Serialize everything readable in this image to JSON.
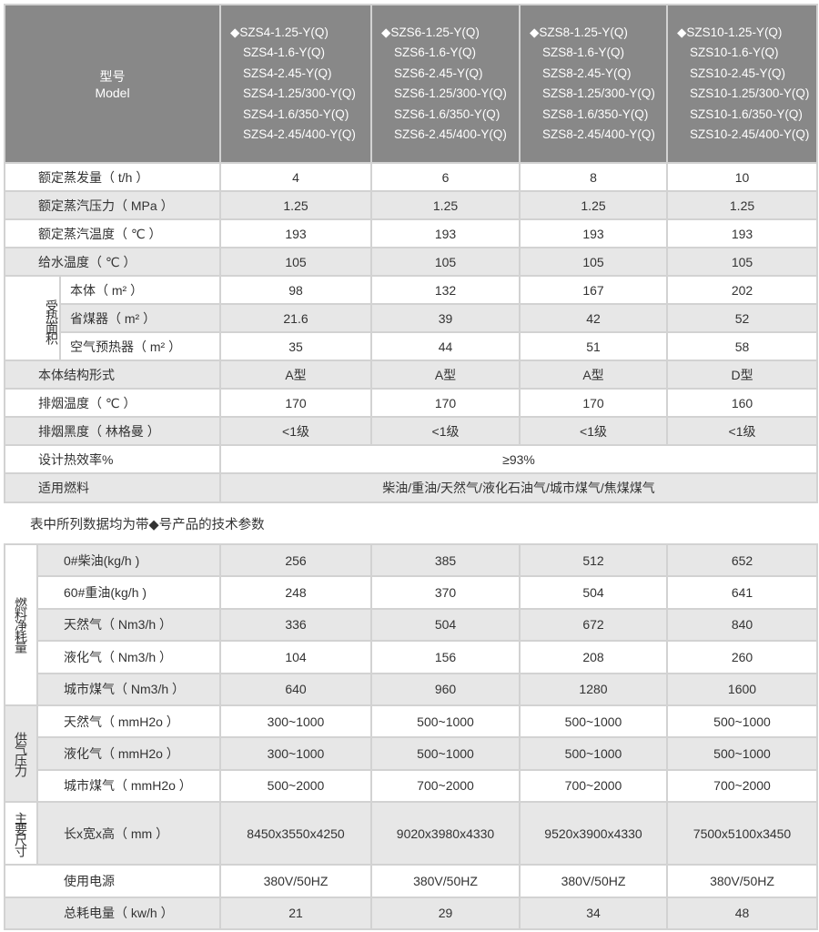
{
  "table1": {
    "header": {
      "label_cn": "型号",
      "label_en": "Model"
    },
    "models": [
      [
        "◆SZS4-1.25-Y(Q)",
        "SZS4-1.6-Y(Q)",
        "SZS4-2.45-Y(Q)",
        "SZS4-1.25/300-Y(Q)",
        "SZS4-1.6/350-Y(Q)",
        "SZS4-2.45/400-Y(Q)"
      ],
      [
        "◆SZS6-1.25-Y(Q)",
        "SZS6-1.6-Y(Q)",
        "SZS6-2.45-Y(Q)",
        "SZS6-1.25/300-Y(Q)",
        "SZS6-1.6/350-Y(Q)",
        "SZS6-2.45/400-Y(Q)"
      ],
      [
        "◆SZS8-1.25-Y(Q)",
        "SZS8-1.6-Y(Q)",
        "SZS8-2.45-Y(Q)",
        "SZS8-1.25/300-Y(Q)",
        "SZS8-1.6/350-Y(Q)",
        "SZS8-2.45/400-Y(Q)"
      ],
      [
        "◆SZS10-1.25-Y(Q)",
        "SZS10-1.6-Y(Q)",
        "SZS10-2.45-Y(Q)",
        "SZS10-1.25/300-Y(Q)",
        "SZS10-1.6/350-Y(Q)",
        "SZS10-2.45/400-Y(Q)"
      ]
    ],
    "rows": [
      {
        "label": "额定蒸发量（ t/h ）",
        "values": [
          "4",
          "6",
          "8",
          "10"
        ]
      },
      {
        "label": "额定蒸汽压力（ MPa ）",
        "values": [
          "1.25",
          "1.25",
          "1.25",
          "1.25"
        ]
      },
      {
        "label": "额定蒸汽温度（ ℃ ）",
        "values": [
          "193",
          "193",
          "193",
          "193"
        ]
      },
      {
        "label": "给水温度（ ℃ ）",
        "values": [
          "105",
          "105",
          "105",
          "105"
        ]
      }
    ],
    "heating_group": {
      "label": "受热面积",
      "rows": [
        {
          "label": "本体（ m² ）",
          "values": [
            "98",
            "132",
            "167",
            "202"
          ]
        },
        {
          "label": "省煤器（ m² ）",
          "values": [
            "21.6",
            "39",
            "42",
            "52"
          ]
        },
        {
          "label": "空气预热器（ m² ）",
          "values": [
            "35",
            "44",
            "51",
            "58"
          ]
        }
      ]
    },
    "rows2": [
      {
        "label": "本体结构形式",
        "values": [
          "A型",
          "A型",
          "A型",
          "D型"
        ]
      },
      {
        "label": "排烟温度（ ℃ ）",
        "values": [
          "170",
          "170",
          "170",
          "160"
        ]
      },
      {
        "label": "排烟黑度（ 林格曼 ）",
        "values": [
          "<1级",
          "<1级",
          "<1级",
          "<1级"
        ]
      }
    ],
    "efficiency": {
      "label": "设计热效率%",
      "value": "≥93%"
    },
    "fuel": {
      "label": "适用燃料",
      "value": "柴油/重油/天然气/液化石油气/城市煤气/焦煤煤气"
    }
  },
  "note": "表中所列数据均为带◆号产品的技术参数",
  "table2": {
    "groups": [
      {
        "label": "燃料净耗量",
        "rows": [
          {
            "label": "0#柴油(kg/h )",
            "values": [
              "256",
              "385",
              "512",
              "652"
            ]
          },
          {
            "label": "60#重油(kg/h )",
            "values": [
              "248",
              "370",
              "504",
              "641"
            ]
          },
          {
            "label": "天然气（ Nm3/h ）",
            "values": [
              "336",
              "504",
              "672",
              "840"
            ]
          },
          {
            "label": "液化气（ Nm3/h ）",
            "values": [
              "104",
              "156",
              "208",
              "260"
            ]
          },
          {
            "label": "城市煤气（ Nm3/h ）",
            "values": [
              "640",
              "960",
              "1280",
              "1600"
            ]
          }
        ]
      },
      {
        "label": "供气压力",
        "rows": [
          {
            "label": "天然气（ mmH2o ）",
            "values": [
              "300~1000",
              "500~1000",
              "500~1000",
              "500~1000"
            ]
          },
          {
            "label": "液化气（ mmH2o ）",
            "values": [
              "300~1000",
              "500~1000",
              "500~1000",
              "500~1000"
            ]
          },
          {
            "label": "城市煤气（ mmH2o ）",
            "values": [
              "500~2000",
              "700~2000",
              "700~2000",
              "700~2000"
            ]
          }
        ]
      },
      {
        "label": "主要尺寸",
        "rows": [
          {
            "label": "长x宽x高（ mm ）",
            "values": [
              "8450x3550x4250",
              "9020x3980x4330",
              "9520x3900x4330",
              "7500x5100x3450"
            ]
          }
        ]
      }
    ],
    "rows": [
      {
        "label": "使用电源",
        "values": [
          "380V/50HZ",
          "380V/50HZ",
          "380V/50HZ",
          "380V/50HZ"
        ]
      },
      {
        "label": "总耗电量（ kw/h  ）",
        "values": [
          "21",
          "29",
          "34",
          "48"
        ]
      }
    ]
  }
}
